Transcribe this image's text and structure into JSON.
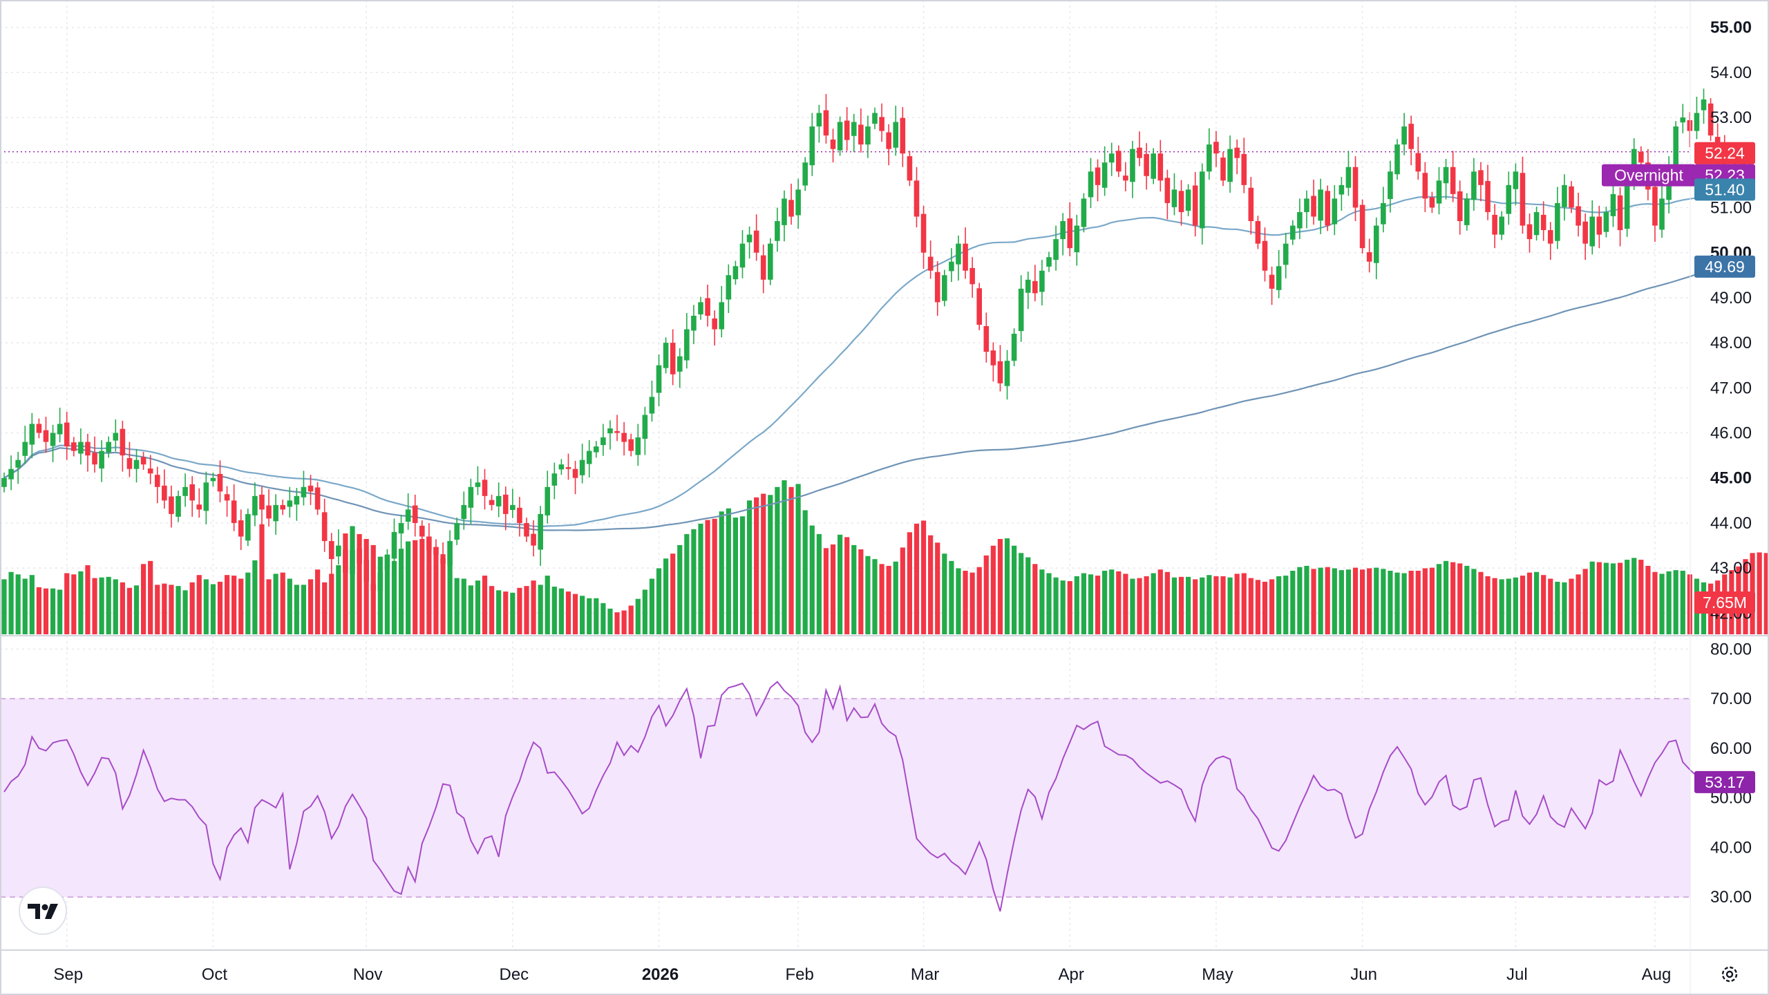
{
  "colors": {
    "up": "#22ab4a",
    "down": "#f23645",
    "ma_short": "#7aa8c9",
    "ma_long": "#6f93b5",
    "rsi_line": "#a64bc7",
    "rsi_band": "#f4e6fc",
    "grid": "#e6e8ee",
    "price_tag": "#f23645",
    "overnight_tag": "#9c27b0",
    "ma_short_tag": "#3a83ac",
    "ma_long_tag": "#3c74a8",
    "volume_tag": "#f23645",
    "rsi_tag": "#8e24aa"
  },
  "tags": {
    "last_price": "52.24",
    "overnight_label": "Overnight",
    "overnight_price": "52.23",
    "ma_short": "51.40",
    "ma_long": "49.69",
    "volume": "7.65M",
    "rsi": "53.17"
  },
  "icons": {
    "logo": "tradingview-logo-icon",
    "settings": "gear-icon"
  },
  "chart_data": [
    {
      "type": "candlestick",
      "panel": "price",
      "y_axis": {
        "min": 41.5,
        "max": 55.3,
        "ticks": [
          55,
          54,
          53,
          52,
          51,
          50,
          49,
          48,
          47,
          46,
          45,
          44,
          43,
          42
        ],
        "tick_labels": [
          "55.00",
          "54.00",
          "53.00",
          "52.00",
          "51.00",
          "50.00",
          "49.00",
          "48.00",
          "47.00",
          "46.00",
          "45.00",
          "44.00",
          "43.00",
          "42.00"
        ],
        "bold_ticks": [
          55,
          50,
          45
        ]
      },
      "x_axis": {
        "labels": [
          "Sep",
          "Oct",
          "Nov",
          "Dec",
          "2026",
          "Feb",
          "Mar",
          "Apr",
          "May",
          "Jun",
          "Jul",
          "Aug"
        ],
        "bold_labels": [
          "2026"
        ],
        "label_bar_index": [
          9,
          30,
          52,
          73,
          94,
          114,
          132,
          153,
          174,
          195,
          217,
          237
        ]
      },
      "last_price_line": 52.24,
      "closes": [
        45.0,
        45.2,
        45.4,
        45.8,
        46.2,
        46.0,
        45.8,
        46.0,
        46.2,
        45.7,
        45.6,
        45.8,
        45.5,
        45.3,
        45.6,
        45.8,
        46.0,
        45.5,
        45.2,
        45.4,
        45.3,
        45.1,
        44.8,
        44.5,
        44.2,
        44.6,
        44.8,
        44.5,
        44.3,
        44.9,
        45.0,
        44.7,
        44.5,
        44.0,
        43.7,
        44.2,
        44.6,
        44.3,
        44.1,
        44.4,
        44.3,
        44.5,
        44.6,
        44.8,
        44.7,
        44.3,
        43.6,
        43.2,
        43.5,
        42.9,
        43.4,
        43.1,
        42.7,
        42.5,
        42.9,
        43.3,
        43.8,
        44.0,
        44.3,
        44.0,
        43.7,
        43.4,
        43.3,
        43.1,
        43.6,
        44.0,
        44.4,
        44.8,
        44.9,
        44.6,
        44.4,
        44.6,
        44.2,
        44.4,
        44.0,
        43.7,
        43.5,
        44.2,
        44.8,
        45.1,
        45.3,
        45.2,
        45.0,
        45.4,
        45.6,
        45.7,
        45.9,
        46.1,
        46.0,
        45.8,
        45.6,
        45.9,
        46.4,
        46.8,
        47.5,
        48.0,
        47.3,
        47.7,
        48.3,
        48.6,
        48.9,
        48.6,
        48.3,
        48.9,
        49.5,
        49.7,
        50.2,
        50.4,
        50.0,
        49.4,
        50.2,
        50.7,
        51.2,
        50.8,
        51.4,
        52.0,
        52.8,
        53.1,
        52.6,
        52.3,
        52.9,
        52.5,
        52.9,
        52.4,
        52.8,
        53.1,
        52.7,
        52.3,
        52.9,
        52.2,
        51.6,
        50.8,
        50.0,
        49.6,
        48.9,
        49.5,
        49.8,
        50.2,
        49.6,
        49.3,
        48.4,
        47.8,
        47.5,
        47.1,
        47.6,
        48.2,
        49.2,
        49.4,
        49.1,
        49.6,
        49.9,
        50.3,
        50.7,
        50.1,
        50.6,
        51.2,
        51.8,
        51.5,
        52.0,
        52.2,
        51.8,
        51.6,
        52.3,
        52.1,
        51.7,
        52.2,
        51.6,
        51.1,
        51.4,
        50.9,
        51.4,
        50.6,
        51.8,
        52.4,
        52.2,
        51.6,
        52.3,
        52.1,
        51.5,
        50.7,
        50.2,
        49.6,
        49.2,
        49.7,
        50.2,
        50.6,
        50.9,
        51.2,
        50.8,
        51.4,
        50.6,
        51.2,
        51.5,
        51.9,
        51.0,
        50.1,
        49.8,
        50.6,
        51.1,
        51.8,
        52.4,
        52.8,
        52.3,
        51.8,
        51.2,
        51.0,
        51.6,
        51.9,
        51.3,
        50.7,
        51.2,
        51.8,
        51.5,
        50.9,
        50.4,
        50.8,
        51.5,
        51.8,
        50.6,
        50.3,
        50.9,
        50.5,
        50.2,
        51.1,
        51.5,
        51.0,
        50.6,
        50.2,
        50.8,
        50.4,
        50.9,
        51.3,
        50.5,
        51.6,
        52.3,
        52.0,
        51.4,
        50.6,
        51.2,
        51.9,
        52.8,
        53.0,
        52.7,
        53.1,
        53.4,
        52.6,
        52.4,
        52.24
      ],
      "series": [
        {
          "name": "",
          "kind": "moving_average",
          "last_value": 51.4
        },
        {
          "name": "",
          "kind": "moving_average",
          "last_value": 49.69
        }
      ]
    },
    {
      "type": "bar",
      "panel": "volume",
      "last_value": 7.65,
      "unit": "M",
      "values": [
        9.0,
        10.2,
        9.8,
        9.1,
        9.7,
        7.7,
        7.5,
        7.5,
        7.3,
        10.0,
        9.8,
        10.3,
        11.3,
        9.2,
        9.3,
        9.4,
        9.0,
        8.5,
        7.6,
        8.0,
        11.5,
        12.0,
        8.1,
        8.3,
        8.1,
        7.9,
        7.2,
        8.5,
        9.7,
        9.0,
        8.2,
        8.6,
        9.7,
        9.6,
        9.1,
        10.1,
        12.1,
        18.0,
        9.0,
        9.9,
        10.1,
        9.1,
        8.1,
        8.1,
        9.0,
        10.6,
        8.5,
        9.9,
        11.3,
        16.5,
        17.7,
        16.4,
        15.6,
        14.6,
        12.7,
        11.2,
        12.0,
        14.0,
        15.2,
        15.4,
        15.6,
        16.0,
        14.3,
        13.1,
        11.9,
        9.2,
        9.1,
        8.0,
        8.8,
        9.6,
        7.9,
        7.2,
        7.0,
        6.8,
        7.6,
        7.9,
        8.8,
        8.1,
        9.6,
        7.8,
        7.5,
        7.0,
        6.6,
        6.3,
        5.9,
        5.9,
        5.1,
        4.2,
        3.6,
        3.9,
        4.7,
        5.8,
        7.3,
        9.1,
        10.8,
        12.4,
        13.2,
        14.6,
        16.4,
        17.2,
        18.1,
        18.7,
        18.9,
        20.1,
        20.6,
        19.1,
        19.3,
        21.9,
        22.4,
        23.0,
        22.8,
        24.1,
        25.2,
        24.1,
        24.6,
        20.3,
        17.8,
        16.4,
        14.1,
        14.7,
        16.3,
        15.9,
        14.6,
        13.9,
        12.8,
        12.3,
        11.5,
        11.2,
        11.9,
        14.2,
        16.7,
        18.1,
        18.6,
        16.2,
        15.0,
        13.2,
        12.0,
        10.8,
        10.4,
        10.1,
        11.0,
        12.9,
        14.5,
        15.6,
        15.7,
        14.5,
        13.3,
        12.6,
        11.5,
        10.6,
        10.0,
        9.3,
        8.8,
        8.7,
        9.5,
        10.0,
        9.8,
        9.6,
        10.4,
        10.6,
        10.3,
        9.9,
        9.1,
        9.2,
        9.5,
        10.0,
        10.6,
        10.2,
        9.3,
        9.4,
        9.4,
        9.0,
        9.3,
        9.7,
        9.5,
        9.5,
        9.3,
        9.9,
        10.0,
        9.2,
        8.9,
        8.6,
        9.0,
        9.5,
        9.6,
        10.4,
        11.0,
        11.2,
        10.7,
        10.9,
        11.0,
        10.8,
        10.5,
        10.6,
        10.9,
        10.6,
        10.8,
        10.9,
        10.7,
        10.4,
        10.1,
        10.0,
        10.4,
        10.4,
        10.8,
        10.9,
        11.5,
        12.0,
        11.8,
        11.6,
        11.2,
        10.7,
        10.2,
        9.5,
        9.2,
        9.0,
        9.1,
        9.3,
        9.6,
        10.1,
        10.2,
        9.7,
        9.1,
        8.6,
        8.5,
        9.1,
        9.8,
        10.7,
        11.9,
        11.8,
        11.7,
        11.6,
        11.7,
        12.2,
        12.5,
        12.2,
        11.2,
        10.2,
        9.9,
        10.3,
        10.5,
        10.4,
        9.8,
        9.1,
        8.5,
        8.3,
        8.8,
        9.8,
        10.5,
        11.1,
        12.3,
        13.3,
        13.4,
        13.3,
        13.3,
        12.5,
        11.8,
        11.5,
        11.4,
        10.8,
        10.3,
        7.65
      ]
    },
    {
      "type": "line",
      "panel": "rsi",
      "y_axis": {
        "min": 20,
        "max": 82,
        "ticks": [
          80,
          70,
          60,
          50,
          40,
          30
        ],
        "tick_labels": [
          "80.00",
          "70.00",
          "60.00",
          "50.00",
          "40.00",
          "30.00"
        ]
      },
      "band": [
        30,
        70
      ],
      "last_value": 53.17,
      "values": [
        51.2,
        53.3,
        54.4,
        56.7,
        62.3,
        60.0,
        59.5,
        61.1,
        61.5,
        61.7,
        58.8,
        55.2,
        52.5,
        55.0,
        58.1,
        57.9,
        55.0,
        47.8,
        50.5,
        54.7,
        59.6,
        56.1,
        51.8,
        49.3,
        49.9,
        49.6,
        49.6,
        48.2,
        46.0,
        44.5,
        36.7,
        33.6,
        40.0,
        42.5,
        43.9,
        41.0,
        48.0,
        49.6,
        48.9,
        48.0,
        50.8,
        35.6,
        40.8,
        47.3,
        48.3,
        50.4,
        47.2,
        41.8,
        44.2,
        48.3,
        50.7,
        48.4,
        45.9,
        37.4,
        35.5,
        33.3,
        31.2,
        30.6,
        36.0,
        33.1,
        40.8,
        44.2,
        48.1,
        52.8,
        52.5,
        47.0,
        45.9,
        41.4,
        38.8,
        41.8,
        42.3,
        38.1,
        46.4,
        50.2,
        53.4,
        57.8,
        61.2,
        60.0,
        55.0,
        55.2,
        53.5,
        51.6,
        49.3,
        46.8,
        47.9,
        51.5,
        54.5,
        57.0,
        61.2,
        58.6,
        60.5,
        59.2,
        62.3,
        66.4,
        68.6,
        64.5,
        66.6,
        69.6,
        72.0,
        66.6,
        58.0,
        64.4,
        64.6,
        70.7,
        72.2,
        72.6,
        73.1,
        70.9,
        66.6,
        69.2,
        72.2,
        73.4,
        71.6,
        70.4,
        68.6,
        63.2,
        61.2,
        63.2,
        71.7,
        68.0,
        72.4,
        65.6,
        68.1,
        66.2,
        66.3,
        68.9,
        65.0,
        63.4,
        62.5,
        57.6,
        49.6,
        41.8,
        40.2,
        38.8,
        37.9,
        38.8,
        37.1,
        36.1,
        34.6,
        37.7,
        41.1,
        37.6,
        31.5,
        27.1,
        34.6,
        41.4,
        47.5,
        51.7,
        50.2,
        45.8,
        51.1,
        53.9,
        57.9,
        61.2,
        64.6,
        63.8,
        64.8,
        65.4,
        60.4,
        59.6,
        58.7,
        58.6,
        57.8,
        56.2,
        55.0,
        54.0,
        53.0,
        53.4,
        52.6,
        51.7,
        48.0,
        45.3,
        52.6,
        56.3,
        57.9,
        58.4,
        57.8,
        51.8,
        50.3,
        47.6,
        45.8,
        42.9,
        39.9,
        39.3,
        41.4,
        44.8,
        48.2,
        51.2,
        54.5,
        52.4,
        51.5,
        51.7,
        50.8,
        45.8,
        41.9,
        42.7,
        47.8,
        51.2,
        55.2,
        58.5,
        60.3,
        58.1,
        55.8,
        50.9,
        48.6,
        50.2,
        53.2,
        54.5,
        48.5,
        47.6,
        48.2,
        53.6,
        54.0,
        48.6,
        44.2,
        45.2,
        45.6,
        51.5,
        46.3,
        44.7,
        46.7,
        50.4,
        46.2,
        44.8,
        44.1,
        47.9,
        45.8,
        43.8,
        46.9,
        53.6,
        52.6,
        53.4,
        59.6,
        56.6,
        53.3,
        50.4,
        54.0,
        57.1,
        59.0,
        61.3,
        61.6,
        57.2,
        55.7,
        54.4,
        53.17
      ]
    }
  ]
}
